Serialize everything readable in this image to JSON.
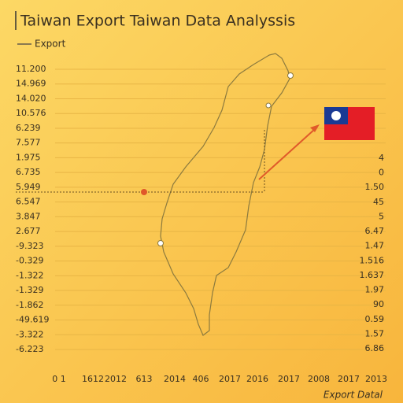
{
  "title": "Taiwan Export Taiwan Data Analyssis",
  "legend": "Export",
  "left_labels": [
    "11.200",
    "14.969",
    "14.020",
    "10.576",
    "6.239",
    "7.577",
    "1.975",
    "6.735",
    "5.949",
    "6.547",
    "3.847",
    "2.677",
    "-9.323",
    "-0.329",
    "-1.322",
    "-1.329",
    "-1.862",
    "-49.619",
    "-3.322",
    "-6.223"
  ],
  "right_labels": [
    "4",
    "0",
    "1.50",
    "45",
    "5",
    "6.47",
    "1.47",
    "1.516",
    "1.637",
    "1.97",
    "90",
    "0.59",
    "1.57",
    "6.86"
  ],
  "bottom_labels": [
    "0 1",
    "1612",
    "2012",
    "613",
    "2014",
    "406",
    "2017",
    "2016",
    "2017",
    "2008",
    "2017",
    "2013"
  ],
  "axis_label": "Export Datal"
}
